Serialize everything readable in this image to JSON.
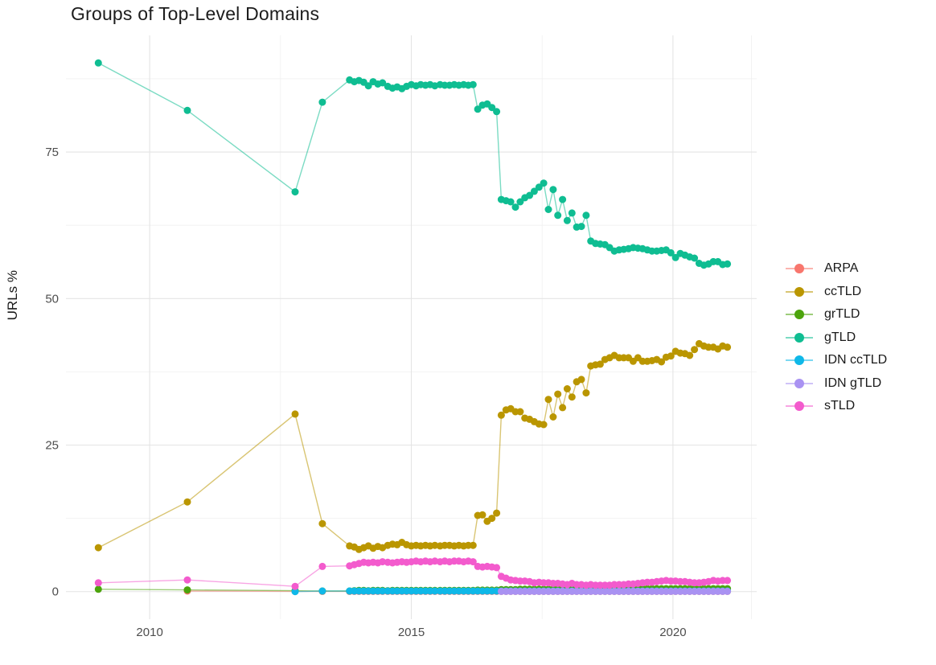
{
  "title": "Groups of Top-Level Domains",
  "style": {
    "grid_major_color": "#E4E4E4",
    "grid_minor_color": "#F0F0F0",
    "axis_text_color": "#4d4d4d",
    "background": "#ffffff"
  },
  "chart_data": {
    "type": "line",
    "title": "Groups of Top-Level Domains",
    "xlabel": "",
    "ylabel": "URLs %",
    "xlim": [
      2008.4,
      2021.6
    ],
    "ylim": [
      -4.7,
      94.9
    ],
    "grid": true,
    "legend_position": "right",
    "x_ticks": [
      2010,
      2015,
      2020
    ],
    "x_tick_labels": [
      "2010",
      "2015",
      "2020"
    ],
    "x_minor": [
      2012.5,
      2017.5,
      2021.5
    ],
    "y_ticks": [
      0,
      25,
      50,
      75
    ],
    "y_tick_labels": [
      "0",
      "25",
      "50",
      "75"
    ],
    "y_minor": [
      12.5,
      37.5,
      62.5,
      87.5
    ],
    "x": [
      2009.02,
      2010.72,
      2012.78,
      2013.3,
      2013.82,
      2013.91,
      2014,
      2014.09,
      2014.18,
      2014.27,
      2014.36,
      2014.45,
      2014.55,
      2014.64,
      2014.73,
      2014.82,
      2014.91,
      2015,
      2015.09,
      2015.18,
      2015.27,
      2015.36,
      2015.45,
      2015.55,
      2015.64,
      2015.73,
      2015.82,
      2015.91,
      2016,
      2016.09,
      2016.18,
      2016.27,
      2016.36,
      2016.45,
      2016.54,
      2016.63,
      2016.72,
      2016.81,
      2016.9,
      2016.99,
      2017.08,
      2017.17,
      2017.26,
      2017.35,
      2017.44,
      2017.53,
      2017.62,
      2017.71,
      2017.8,
      2017.89,
      2017.98,
      2018.07,
      2018.16,
      2018.25,
      2018.34,
      2018.43,
      2018.52,
      2018.61,
      2018.7,
      2018.79,
      2018.88,
      2018.97,
      2019.06,
      2019.15,
      2019.24,
      2019.33,
      2019.42,
      2019.51,
      2019.6,
      2019.69,
      2019.78,
      2019.87,
      2019.96,
      2020.05,
      2020.14,
      2020.23,
      2020.32,
      2020.41,
      2020.5,
      2020.59,
      2020.68,
      2020.77,
      2020.86,
      2020.95,
      2021.04
    ],
    "series": [
      {
        "name": "ARPA",
        "color": "#F8766D",
        "values": [
          null,
          0.1,
          0.05,
          0.05,
          0.05,
          0.05,
          0.05,
          0.05,
          0.05,
          0.05,
          0.05,
          0.05,
          0.05,
          0.05,
          0.05,
          0.05,
          0.05,
          0.05,
          0.05,
          0.05,
          0.05,
          0.05,
          0.05,
          0.05,
          0.05,
          0.05,
          0.05,
          0.05,
          0.05,
          0.05,
          0.05,
          0.05,
          0.05,
          0.05,
          0.05,
          0.05,
          0.05,
          0.05,
          0.05,
          0.05,
          0.05,
          0.05,
          0.05,
          0.05,
          0.05,
          0.05,
          0.05,
          0.05,
          0.05,
          0.05,
          0.05,
          0.05,
          0.05,
          0.05,
          0.05,
          0.05,
          0.05,
          0.05,
          0.05,
          0.05,
          0.05,
          0.05,
          0.05,
          0.05,
          0.05,
          0.05,
          0.05,
          0.05,
          0.05,
          0.05,
          0.05,
          0.05,
          0.05,
          0.05,
          0.05,
          0.05,
          0.05,
          0.05,
          0.05,
          0.05,
          0.05,
          0.05,
          0.05,
          0.05,
          0.05
        ]
      },
      {
        "name": "ccTLD",
        "color": "#BA9600",
        "values": [
          7.5,
          15.3,
          30.3,
          11.6,
          7.8,
          7.6,
          7.2,
          7.5,
          7.8,
          7.4,
          7.7,
          7.5,
          7.9,
          8.1,
          8.0,
          8.4,
          8.0,
          7.8,
          7.9,
          7.8,
          7.9,
          7.8,
          7.9,
          7.8,
          7.9,
          7.9,
          7.8,
          7.9,
          7.8,
          7.9,
          7.9,
          13.0,
          13.1,
          12.0,
          12.5,
          13.4,
          30.1,
          31.0,
          31.2,
          30.7,
          30.7,
          29.6,
          29.4,
          29.0,
          28.6,
          28.5,
          32.8,
          29.8,
          33.7,
          31.4,
          34.6,
          33.2,
          35.8,
          36.2,
          33.9,
          38.5,
          38.7,
          38.8,
          39.6,
          39.9,
          40.3,
          39.9,
          39.9,
          39.9,
          39.3,
          39.9,
          39.3,
          39.3,
          39.4,
          39.6,
          39.2,
          40.0,
          40.2,
          41.0,
          40.7,
          40.6,
          40.3,
          41.3,
          42.3,
          41.9,
          41.7,
          41.7,
          41.4,
          41.9,
          41.7
        ]
      },
      {
        "name": "grTLD",
        "color": "#4CA40C",
        "values": [
          0.4,
          0.3,
          0.15,
          0.1,
          0.1,
          0.15,
          0.2,
          0.2,
          0.15,
          0.2,
          0.2,
          0.2,
          0.15,
          0.2,
          0.2,
          0.2,
          0.2,
          0.2,
          0.2,
          0.2,
          0.2,
          0.2,
          0.2,
          0.2,
          0.2,
          0.2,
          0.2,
          0.2,
          0.2,
          0.2,
          0.2,
          0.25,
          0.25,
          0.25,
          0.25,
          0.25,
          0.35,
          0.35,
          0.35,
          0.35,
          0.4,
          0.4,
          0.4,
          0.4,
          0.4,
          0.4,
          0.4,
          0.4,
          0.4,
          0.4,
          0.4,
          0.4,
          0.45,
          0.45,
          0.45,
          0.45,
          0.45,
          0.45,
          0.45,
          0.45,
          0.45,
          0.45,
          0.5,
          0.5,
          0.5,
          0.5,
          0.5,
          0.5,
          0.5,
          0.5,
          0.5,
          0.5,
          0.5,
          0.5,
          0.5,
          0.5,
          0.5,
          0.5,
          0.5,
          0.5,
          0.5,
          0.5,
          0.5,
          0.5,
          0.5
        ]
      },
      {
        "name": "gTLD",
        "color": "#0FBD92",
        "values": [
          90.2,
          82.1,
          68.2,
          83.5,
          87.3,
          87.0,
          87.2,
          86.9,
          86.3,
          87.0,
          86.6,
          86.8,
          86.2,
          85.9,
          86.1,
          85.8,
          86.2,
          86.5,
          86.3,
          86.5,
          86.4,
          86.5,
          86.3,
          86.5,
          86.4,
          86.4,
          86.5,
          86.4,
          86.5,
          86.4,
          86.5,
          82.3,
          83.0,
          83.2,
          82.6,
          81.9,
          66.9,
          66.7,
          66.5,
          65.6,
          66.5,
          67.2,
          67.6,
          68.3,
          69.0,
          69.7,
          65.2,
          68.6,
          64.2,
          66.9,
          63.3,
          64.6,
          62.2,
          62.3,
          64.2,
          59.8,
          59.4,
          59.3,
          59.2,
          58.7,
          58.1,
          58.3,
          58.4,
          58.5,
          58.7,
          58.6,
          58.5,
          58.3,
          58.1,
          58.1,
          58.2,
          58.3,
          57.8,
          57.0,
          57.7,
          57.4,
          57.1,
          56.9,
          56.0,
          55.7,
          55.9,
          56.3,
          56.3,
          55.8,
          55.9
        ]
      },
      {
        "name": "IDN ccTLD",
        "color": "#0FB8E8",
        "values": [
          null,
          null,
          0.0,
          0.1,
          0.1,
          0.1,
          0.1,
          0.1,
          0.1,
          0.1,
          0.1,
          0.1,
          0.1,
          0.1,
          0.1,
          0.1,
          0.1,
          0.1,
          0.1,
          0.1,
          0.1,
          0.1,
          0.1,
          0.1,
          0.1,
          0.1,
          0.1,
          0.1,
          0.1,
          0.1,
          0.1,
          0.1,
          0.1,
          0.1,
          0.1,
          0.1,
          0.1,
          0.1,
          0.1,
          0.1,
          0.1,
          0.1,
          0.1,
          0.1,
          0.1,
          0.1,
          0.1,
          0.1,
          0.1,
          0.1,
          0.1,
          0.1,
          0.1,
          0.1,
          0.1,
          0.1,
          0.1,
          0.1,
          0.1,
          0.1,
          0.1,
          0.1,
          0.1,
          0.1,
          0.1,
          0.1,
          0.1,
          0.1,
          0.1,
          0.1,
          0.1,
          0.1,
          0.1,
          0.1,
          0.1,
          0.1,
          0.1,
          0.1,
          0.1,
          0.1,
          0.1,
          0.1,
          0.1,
          0.1,
          0.1
        ]
      },
      {
        "name": "IDN gTLD",
        "color": "#A992F2",
        "values": [
          null,
          null,
          null,
          null,
          null,
          null,
          null,
          null,
          null,
          null,
          null,
          null,
          null,
          null,
          null,
          null,
          null,
          null,
          null,
          null,
          null,
          null,
          null,
          null,
          null,
          null,
          null,
          null,
          null,
          null,
          null,
          null,
          null,
          null,
          null,
          null,
          0.05,
          0.05,
          0.05,
          0.05,
          0.05,
          0.05,
          0.05,
          0.05,
          0.05,
          0.05,
          0.05,
          0.05,
          0.05,
          0.05,
          0.05,
          0.05,
          0.05,
          0.05,
          0.05,
          0.05,
          0.05,
          0.05,
          0.05,
          0.05,
          0.05,
          0.05,
          0.05,
          0.05,
          0.05,
          0.05,
          0.05,
          0.05,
          0.05,
          0.05,
          0.05,
          0.05,
          0.05,
          0.05,
          0.05,
          0.05,
          0.05,
          0.05,
          0.05,
          0.05,
          0.05,
          0.05,
          0.05,
          0.05,
          0.05
        ]
      },
      {
        "name": "sTLD",
        "color": "#F35BCD",
        "values": [
          1.5,
          2.0,
          0.9,
          4.3,
          4.4,
          4.6,
          4.8,
          5.0,
          4.9,
          5.0,
          4.9,
          5.1,
          5.0,
          4.9,
          5.0,
          5.1,
          5.0,
          5.1,
          5.2,
          5.1,
          5.2,
          5.1,
          5.2,
          5.1,
          5.2,
          5.1,
          5.2,
          5.2,
          5.1,
          5.2,
          5.1,
          4.3,
          4.2,
          4.3,
          4.2,
          4.1,
          2.6,
          2.3,
          2.0,
          1.9,
          1.8,
          1.8,
          1.7,
          1.5,
          1.6,
          1.5,
          1.5,
          1.4,
          1.4,
          1.3,
          1.2,
          1.4,
          1.2,
          1.2,
          1.1,
          1.2,
          1.1,
          1.1,
          1.1,
          1.1,
          1.2,
          1.2,
          1.2,
          1.3,
          1.3,
          1.4,
          1.5,
          1.6,
          1.6,
          1.7,
          1.8,
          1.9,
          1.8,
          1.8,
          1.7,
          1.7,
          1.6,
          1.5,
          1.5,
          1.6,
          1.7,
          1.9,
          1.8,
          1.9,
          1.9
        ]
      }
    ]
  }
}
